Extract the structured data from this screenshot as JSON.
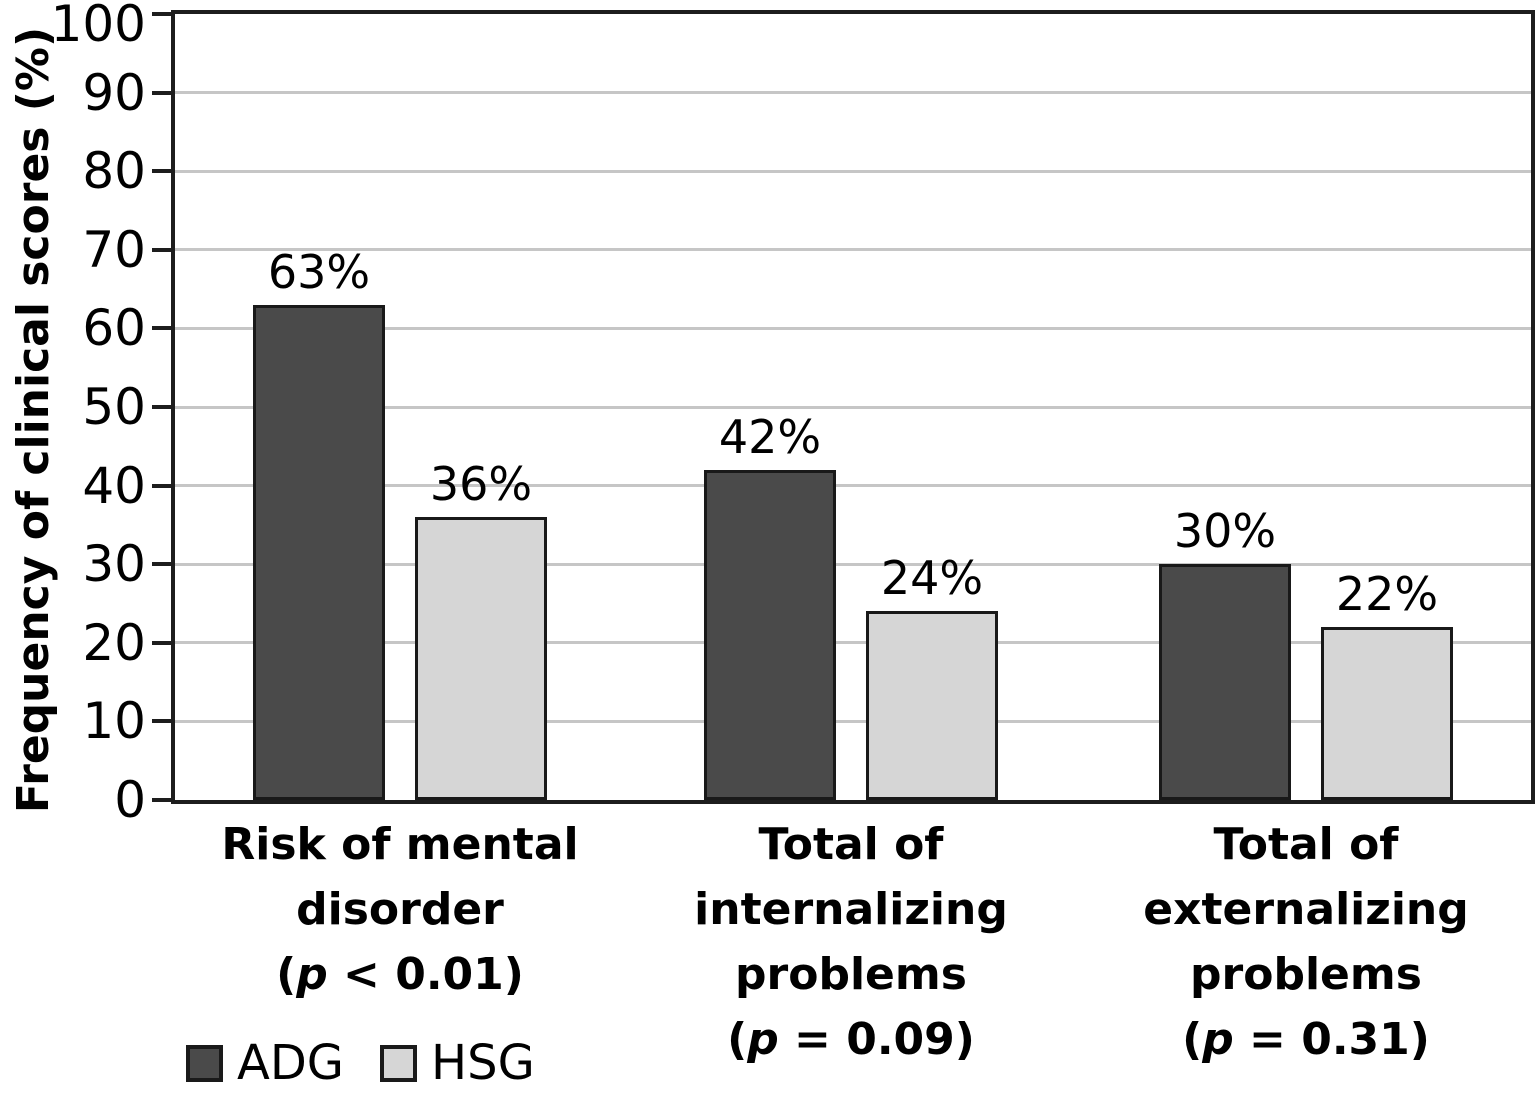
{
  "chart_data": {
    "type": "bar",
    "title": "",
    "ylabel": "Frequency of clinical scores (%)",
    "xlabel": "",
    "ylim": [
      0,
      100
    ],
    "ytick_step": 10,
    "grid": "horizontal-light",
    "legend_position": "bottom-left",
    "value_suffix": "%",
    "categories": [
      {
        "name_lines": [
          "Risk of mental",
          "disorder"
        ],
        "p_label": "p < 0.01"
      },
      {
        "name_lines": [
          "Total of",
          "internalizing",
          "problems"
        ],
        "p_label": "p = 0.09"
      },
      {
        "name_lines": [
          "Total of",
          "externalizing",
          "problems"
        ],
        "p_label": "p = 0.31"
      }
    ],
    "series": [
      {
        "name": "ADG",
        "color": "#4a4a4a",
        "values": [
          63,
          42,
          30
        ]
      },
      {
        "name": "HSG",
        "color": "#d6d6d6",
        "values": [
          36,
          24,
          22
        ]
      }
    ],
    "colors": {
      "axis": "#1d1d1d",
      "grid": "#c6c6c6",
      "bar_border": "#191919",
      "text": "#000000"
    }
  }
}
